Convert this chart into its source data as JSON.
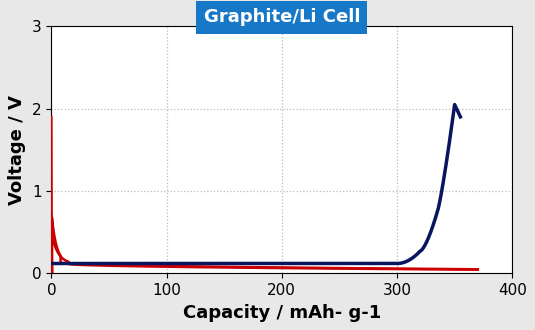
{
  "title": "Graphite/Li Cell",
  "title_bg_color": "#1878C8",
  "title_text_color": "white",
  "xlabel": "Capacity / mAh- g-1",
  "ylabel": "Voltage / V",
  "xlim": [
    0,
    400
  ],
  "ylim": [
    0,
    3
  ],
  "xticks": [
    0,
    100,
    200,
    300,
    400
  ],
  "yticks": [
    0,
    1,
    2,
    3
  ],
  "grid_color": "#bbbbbb",
  "navy_color": "#0a1560",
  "red_color": "#cc0000",
  "bg_color": "#e8e8e8",
  "plot_bg_color": "#ffffff",
  "label_fontsize": 13,
  "tick_fontsize": 11
}
